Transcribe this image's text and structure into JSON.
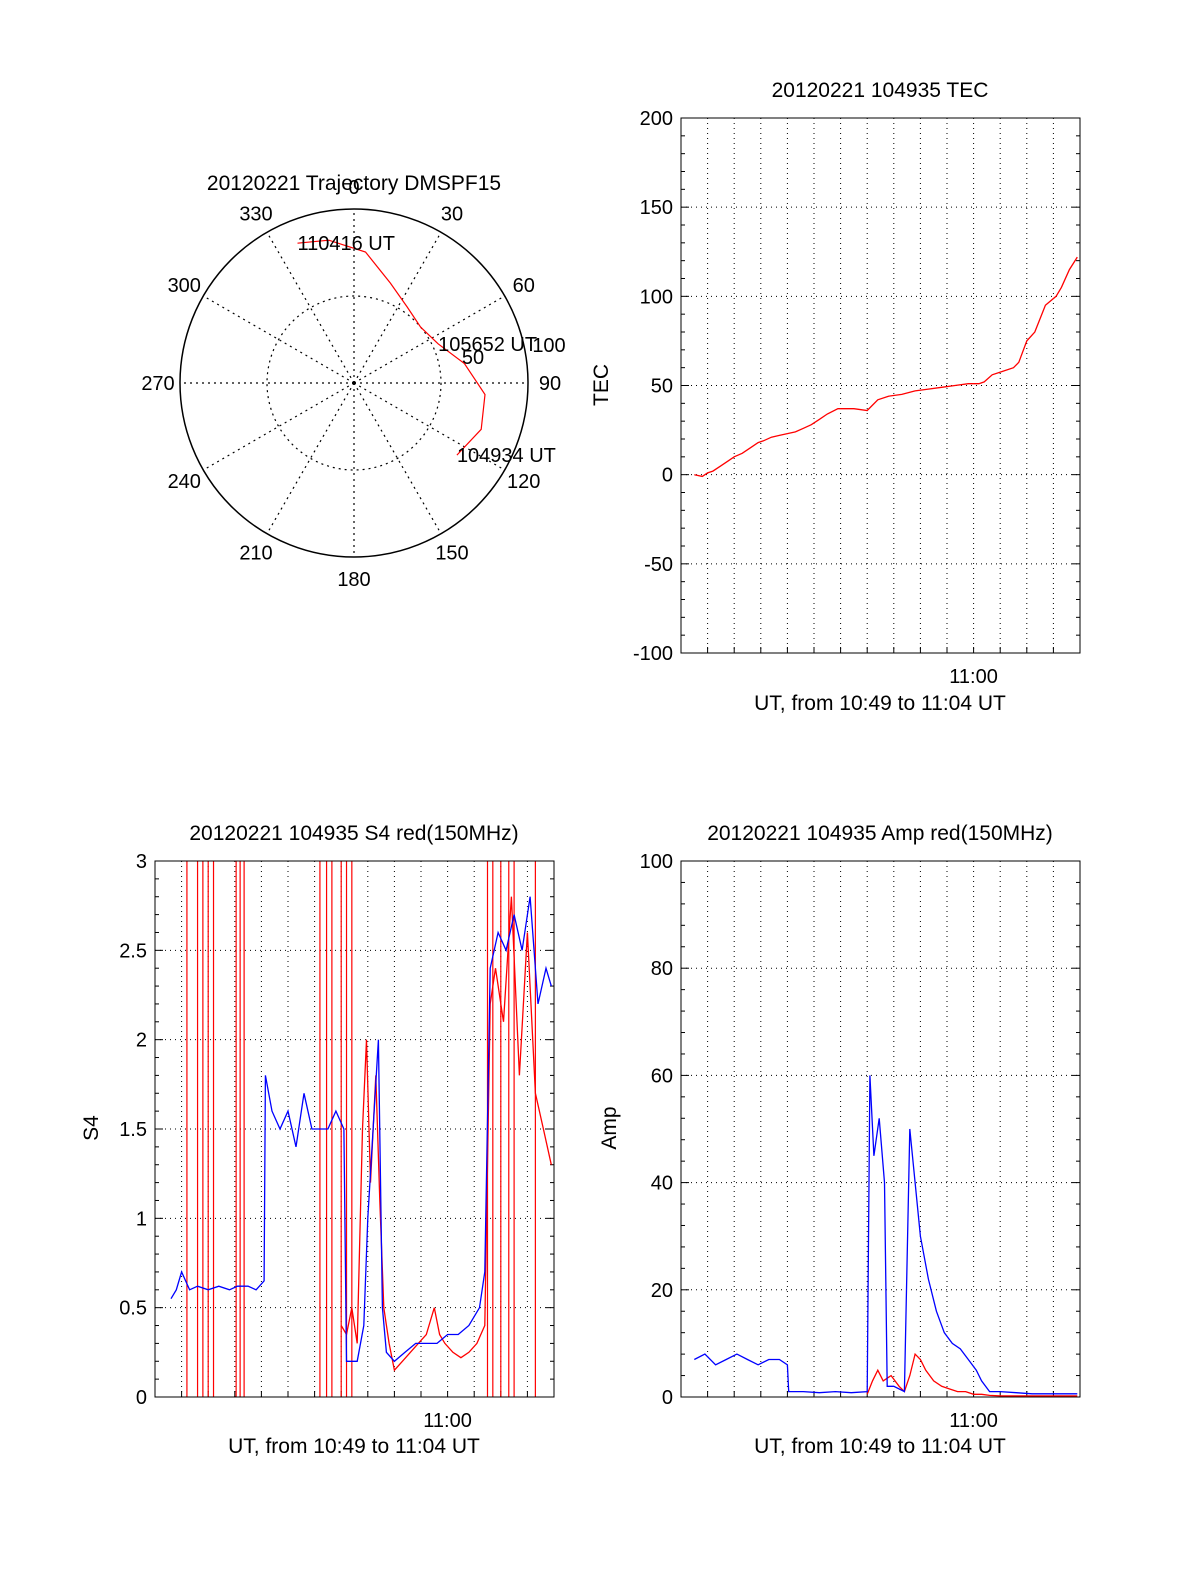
{
  "colors": {
    "red": "#ff0000",
    "blue": "#0000ff",
    "axis": "#000000",
    "grid": "#000000"
  },
  "chart_data": [
    {
      "type": "polar",
      "title": "20120221 Trajectory DMSPF15",
      "angle_labels": [
        "0",
        "30",
        "60",
        "90",
        "120",
        "150",
        "180",
        "210",
        "240",
        "270",
        "300",
        "330"
      ],
      "radius_labels": [
        "50",
        "100"
      ],
      "grid": "dotted",
      "series": [
        {
          "color": "#ff0000",
          "points": [
            {
              "az": 125,
              "el": 25,
              "label": "104934 UT"
            },
            {
              "az": 110,
              "el": 20
            },
            {
              "az": 95,
              "el": 22
            },
            {
              "az": 80,
              "el": 32
            },
            {
              "az": 65,
              "el": 42,
              "label": "105652 UT"
            },
            {
              "az": 50,
              "el": 45
            },
            {
              "az": 35,
              "el": 42
            },
            {
              "az": 20,
              "el": 35
            },
            {
              "az": 5,
              "el": 22
            },
            {
              "az": -10,
              "el": 15
            },
            {
              "az": -22,
              "el": 12,
              "label": "110416 UT"
            }
          ]
        }
      ]
    },
    {
      "type": "line",
      "title": "20120221 104935 TEC",
      "xlabel": "UT, from 10:49 to 11:04 UT",
      "ylabel": "TEC",
      "xlim": [
        0,
        15
      ],
      "ylim": [
        -100,
        200
      ],
      "yticks": [
        -100,
        -50,
        0,
        50,
        100,
        150,
        200
      ],
      "xtick_labels": [
        {
          "x": 11,
          "label": "11:00"
        }
      ],
      "grid": true,
      "series": [
        {
          "color": "#ff0000",
          "points": [
            [
              0.5,
              0
            ],
            [
              0.8,
              -1
            ],
            [
              1.0,
              1
            ],
            [
              1.2,
              2
            ],
            [
              1.5,
              5
            ],
            [
              1.8,
              8
            ],
            [
              2.0,
              10
            ],
            [
              2.3,
              12
            ],
            [
              2.6,
              15
            ],
            [
              2.9,
              18
            ],
            [
              3.1,
              19
            ],
            [
              3.4,
              21
            ],
            [
              3.7,
              22
            ],
            [
              4.0,
              23
            ],
            [
              4.3,
              24
            ],
            [
              4.6,
              26
            ],
            [
              4.9,
              28
            ],
            [
              5.2,
              31
            ],
            [
              5.5,
              34
            ],
            [
              5.9,
              37
            ],
            [
              6.2,
              37
            ],
            [
              6.5,
              37
            ],
            [
              7.0,
              36
            ],
            [
              7.4,
              42
            ],
            [
              7.8,
              44
            ],
            [
              8.3,
              45
            ],
            [
              8.8,
              47
            ],
            [
              9.3,
              48
            ],
            [
              9.8,
              49
            ],
            [
              10.3,
              50
            ],
            [
              10.8,
              51
            ],
            [
              11.2,
              51
            ],
            [
              11.4,
              52
            ],
            [
              11.7,
              56
            ],
            [
              12.1,
              58
            ],
            [
              12.5,
              60
            ],
            [
              12.7,
              63
            ],
            [
              13.0,
              75
            ],
            [
              13.3,
              80
            ],
            [
              13.7,
              95
            ],
            [
              14.1,
              100
            ],
            [
              14.3,
              105
            ],
            [
              14.6,
              115
            ],
            [
              14.9,
              122
            ]
          ]
        }
      ]
    },
    {
      "type": "line",
      "title": "20120221 104935 S4 red(150MHz)",
      "xlabel": "UT, from 10:49 to 11:04 UT",
      "ylabel": "S4",
      "xlim": [
        0,
        15
      ],
      "ylim": [
        0,
        3
      ],
      "yticks": [
        0,
        0.5,
        1,
        1.5,
        2,
        2.5,
        3
      ],
      "xtick_labels": [
        {
          "x": 11,
          "label": "11:00"
        }
      ],
      "grid": true,
      "series": [
        {
          "color": "#ff0000",
          "vertical_lines": [
            1.2,
            1.6,
            1.8,
            2.0,
            2.2,
            3.05,
            3.2,
            3.35,
            6.2,
            6.45,
            6.65,
            7.0,
            7.2,
            7.4,
            12.5,
            12.7,
            13.0,
            13.3,
            13.5,
            14.3
          ],
          "points": [
            [
              7.0,
              0.4
            ],
            [
              7.2,
              0.35
            ],
            [
              7.4,
              0.5
            ],
            [
              7.6,
              0.3
            ],
            [
              7.8,
              1.5
            ],
            [
              7.95,
              2.0
            ],
            [
              8.1,
              1.2
            ],
            [
              8.3,
              1.8
            ],
            [
              8.45,
              1.1
            ],
            [
              8.6,
              0.5
            ],
            [
              8.8,
              0.3
            ],
            [
              9.0,
              0.15
            ],
            [
              9.3,
              0.2
            ],
            [
              9.6,
              0.25
            ],
            [
              9.9,
              0.3
            ],
            [
              10.2,
              0.35
            ],
            [
              10.5,
              0.5
            ],
            [
              10.7,
              0.35
            ],
            [
              10.9,
              0.3
            ],
            [
              11.2,
              0.25
            ],
            [
              11.5,
              0.22
            ],
            [
              11.8,
              0.25
            ],
            [
              12.1,
              0.3
            ],
            [
              12.4,
              0.4
            ],
            [
              12.6,
              2.2
            ],
            [
              12.8,
              2.4
            ],
            [
              13.1,
              2.1
            ],
            [
              13.4,
              2.8
            ],
            [
              13.7,
              1.8
            ],
            [
              14.0,
              2.6
            ],
            [
              14.3,
              1.7
            ],
            [
              14.6,
              1.5
            ],
            [
              14.9,
              1.3
            ]
          ]
        },
        {
          "color": "#0000ff",
          "points": [
            [
              0.6,
              0.55
            ],
            [
              0.8,
              0.6
            ],
            [
              1.0,
              0.7
            ],
            [
              1.3,
              0.6
            ],
            [
              1.6,
              0.62
            ],
            [
              2.0,
              0.6
            ],
            [
              2.4,
              0.62
            ],
            [
              2.8,
              0.6
            ],
            [
              3.1,
              0.62
            ],
            [
              3.5,
              0.62
            ],
            [
              3.8,
              0.6
            ],
            [
              4.1,
              0.65
            ],
            [
              4.15,
              1.8
            ],
            [
              4.4,
              1.6
            ],
            [
              4.7,
              1.5
            ],
            [
              5.0,
              1.6
            ],
            [
              5.3,
              1.4
            ],
            [
              5.6,
              1.7
            ],
            [
              5.9,
              1.5
            ],
            [
              6.2,
              1.5
            ],
            [
              6.5,
              1.5
            ],
            [
              6.8,
              1.6
            ],
            [
              7.1,
              1.5
            ],
            [
              7.2,
              0.2
            ],
            [
              7.6,
              0.2
            ],
            [
              7.85,
              0.4
            ],
            [
              8.0,
              1.0
            ],
            [
              8.2,
              1.5
            ],
            [
              8.4,
              2.0
            ],
            [
              8.55,
              0.5
            ],
            [
              8.7,
              0.25
            ],
            [
              9.0,
              0.2
            ],
            [
              9.4,
              0.25
            ],
            [
              9.8,
              0.3
            ],
            [
              10.2,
              0.3
            ],
            [
              10.6,
              0.3
            ],
            [
              11.0,
              0.35
            ],
            [
              11.4,
              0.35
            ],
            [
              11.8,
              0.4
            ],
            [
              12.2,
              0.5
            ],
            [
              12.4,
              0.7
            ],
            [
              12.6,
              2.4
            ],
            [
              12.9,
              2.6
            ],
            [
              13.2,
              2.5
            ],
            [
              13.5,
              2.7
            ],
            [
              13.8,
              2.5
            ],
            [
              14.1,
              2.8
            ],
            [
              14.4,
              2.2
            ],
            [
              14.7,
              2.4
            ],
            [
              14.9,
              2.3
            ]
          ]
        }
      ]
    },
    {
      "type": "line",
      "title": "20120221 104935 Amp red(150MHz)",
      "xlabel": "UT, from 10:49 to 11:04 UT",
      "ylabel": "Amp",
      "xlim": [
        0,
        15
      ],
      "ylim": [
        0,
        100
      ],
      "yticks": [
        0,
        20,
        40,
        60,
        80,
        100
      ],
      "xtick_labels": [
        {
          "x": 11,
          "label": "11:00"
        }
      ],
      "grid": true,
      "series": [
        {
          "color": "#ff0000",
          "points": [
            [
              7.0,
              0.5
            ],
            [
              7.2,
              3
            ],
            [
              7.4,
              5
            ],
            [
              7.6,
              3
            ],
            [
              7.9,
              4
            ],
            [
              8.2,
              2
            ],
            [
              8.4,
              1
            ],
            [
              8.6,
              4
            ],
            [
              8.8,
              8
            ],
            [
              9.0,
              7
            ],
            [
              9.2,
              5
            ],
            [
              9.5,
              3
            ],
            [
              9.8,
              2
            ],
            [
              10.1,
              1.5
            ],
            [
              10.4,
              1
            ],
            [
              10.7,
              1
            ],
            [
              11.0,
              0.5
            ],
            [
              11.3,
              0.5
            ],
            [
              11.6,
              0.3
            ],
            [
              12.0,
              0.2
            ],
            [
              14.9,
              0.2
            ]
          ]
        },
        {
          "color": "#0000ff",
          "points": [
            [
              0.5,
              7
            ],
            [
              0.9,
              8
            ],
            [
              1.3,
              6
            ],
            [
              1.7,
              7
            ],
            [
              2.1,
              8
            ],
            [
              2.5,
              7
            ],
            [
              2.9,
              6
            ],
            [
              3.3,
              7
            ],
            [
              3.7,
              7
            ],
            [
              4.0,
              6
            ],
            [
              4.05,
              1
            ],
            [
              4.6,
              1
            ],
            [
              5.2,
              0.8
            ],
            [
              5.8,
              1
            ],
            [
              6.4,
              0.8
            ],
            [
              7.0,
              1
            ],
            [
              7.1,
              60
            ],
            [
              7.25,
              45
            ],
            [
              7.45,
              52
            ],
            [
              7.65,
              40
            ],
            [
              7.75,
              2
            ],
            [
              8.0,
              2
            ],
            [
              8.4,
              1
            ],
            [
              8.6,
              50
            ],
            [
              8.8,
              40
            ],
            [
              9.0,
              30
            ],
            [
              9.3,
              22
            ],
            [
              9.6,
              16
            ],
            [
              9.9,
              12
            ],
            [
              10.2,
              10
            ],
            [
              10.5,
              9
            ],
            [
              10.8,
              7
            ],
            [
              11.1,
              5
            ],
            [
              11.3,
              3
            ],
            [
              11.6,
              1
            ],
            [
              12.0,
              1
            ],
            [
              12.6,
              0.8
            ],
            [
              13.2,
              0.6
            ],
            [
              13.8,
              0.6
            ],
            [
              14.4,
              0.6
            ],
            [
              14.9,
              0.6
            ]
          ]
        }
      ]
    }
  ]
}
